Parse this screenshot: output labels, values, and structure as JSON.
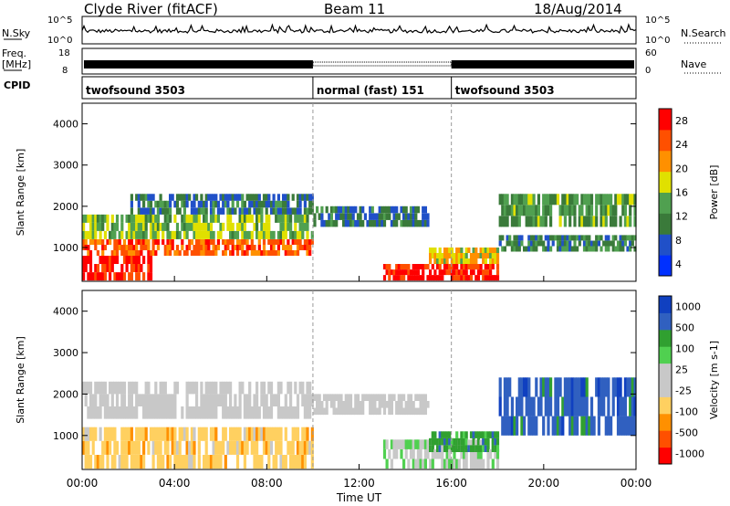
{
  "header": {
    "radar": "Clyde River (fitACF)",
    "beam": "Beam 11",
    "date": "18/Aug/2014"
  },
  "noise_panel": {
    "left_label": "N.Sky",
    "right_label": "N.Search",
    "left_ticks": [
      "10^5",
      "10^0"
    ],
    "right_ticks": [
      "10^5",
      "10^0"
    ]
  },
  "freq_panel": {
    "left_label_1": "Freq.",
    "left_label_2": "[MHz]",
    "left_ticks": [
      "18",
      "8"
    ],
    "right_label": "Nave",
    "right_ticks": [
      "60",
      "0"
    ]
  },
  "cpid": {
    "label": "CPID",
    "segments": [
      {
        "name": "twofsound 3503",
        "start_hour": 0,
        "end_hour": 10
      },
      {
        "name": "normal (fast) 151",
        "start_hour": 10,
        "end_hour": 16
      },
      {
        "name": "twofsound 3503",
        "start_hour": 16,
        "end_hour": 24
      }
    ]
  },
  "colors": {
    "power": [
      "#0030ff",
      "#2050c8",
      "#3a7a3a",
      "#50a050",
      "#e0e000",
      "#ff9000",
      "#ff5000",
      "#ff0000"
    ],
    "velocity": [
      "#ff0000",
      "#ff5000",
      "#ff9000",
      "#ffd060",
      "#c8c8c8",
      "#c8c8c8",
      "#50d050",
      "#30a030",
      "#3060c0",
      "#1040c0"
    ]
  },
  "chart_data": [
    {
      "type": "heatmap",
      "title": "Power",
      "ylabel": "Slant Range [km]",
      "xlabel": "",
      "x_ticks": [
        "00:00",
        "04:00",
        "08:00",
        "12:00",
        "16:00",
        "20:00",
        "00:00"
      ],
      "y_ticks": [
        "1000",
        "2000",
        "3000",
        "4000"
      ],
      "ylim": [
        180,
        4500
      ],
      "xlim_hours": [
        0,
        24
      ],
      "colorbar": {
        "label": "Power [dB]",
        "ticks": [
          "28",
          "24",
          "20",
          "16",
          "12",
          "8",
          "4"
        ],
        "range": [
          0,
          30
        ]
      },
      "bands": [
        {
          "x": [
            0,
            3
          ],
          "range": [
            200,
            800
          ],
          "power": 28
        },
        {
          "x": [
            0,
            10
          ],
          "range": [
            800,
            1200
          ],
          "power": 24
        },
        {
          "x": [
            0,
            10
          ],
          "range": [
            1200,
            1800
          ],
          "power": 14
        },
        {
          "x": [
            2,
            10
          ],
          "range": [
            1800,
            2300
          ],
          "power": 8
        },
        {
          "x": [
            10,
            15
          ],
          "range": [
            1500,
            2000
          ],
          "power": 8
        },
        {
          "x": [
            13,
            18
          ],
          "range": [
            200,
            600
          ],
          "power": 28
        },
        {
          "x": [
            15,
            18
          ],
          "range": [
            600,
            1000
          ],
          "power": 18
        },
        {
          "x": [
            18,
            24
          ],
          "range": [
            900,
            1300
          ],
          "power": 10
        },
        {
          "x": [
            18,
            24
          ],
          "range": [
            1500,
            2300
          ],
          "power": 12
        }
      ]
    },
    {
      "type": "heatmap",
      "title": "Velocity",
      "ylabel": "Slant Range [km]",
      "xlabel": "Time UT",
      "x_ticks": [
        "00:00",
        "04:00",
        "08:00",
        "12:00",
        "16:00",
        "20:00",
        "00:00"
      ],
      "y_ticks": [
        "1000",
        "2000",
        "3000",
        "4000"
      ],
      "ylim": [
        180,
        4500
      ],
      "xlim_hours": [
        0,
        24
      ],
      "colorbar": {
        "label": "Velocity [m s-1]",
        "ticks": [
          "1000",
          "500",
          "100",
          "25",
          "-25",
          "-100",
          "-500",
          "-1000"
        ],
        "range": [
          -1000,
          1000
        ]
      },
      "bands": [
        {
          "x": [
            0,
            10
          ],
          "range": [
            200,
            1200
          ],
          "velocity": -300
        },
        {
          "x": [
            0,
            10
          ],
          "range": [
            1400,
            2300
          ],
          "velocity": 0
        },
        {
          "x": [
            10,
            15
          ],
          "range": [
            1500,
            2000
          ],
          "velocity": 0
        },
        {
          "x": [
            13,
            18
          ],
          "range": [
            200,
            900
          ],
          "velocity": 150
        },
        {
          "x": [
            15,
            18
          ],
          "range": [
            600,
            1100
          ],
          "velocity": 500
        },
        {
          "x": [
            18,
            24
          ],
          "range": [
            1000,
            2400
          ],
          "velocity": 700
        }
      ]
    }
  ]
}
